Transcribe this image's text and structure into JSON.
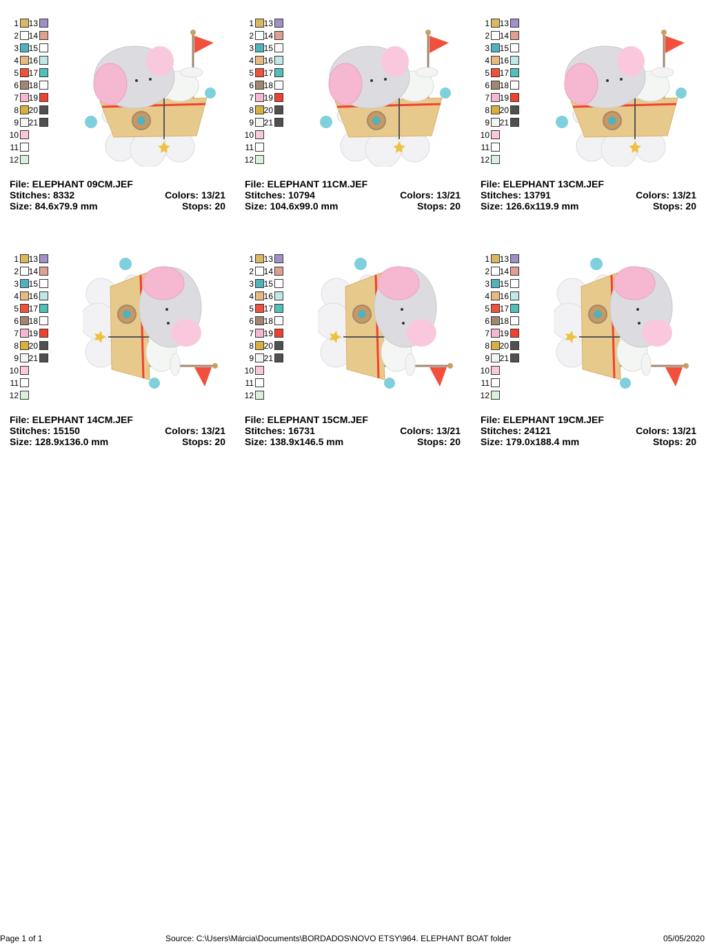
{
  "palette": [
    {
      "number": 1,
      "color": "#d9b860"
    },
    {
      "number": 2,
      "color": "#ffffff"
    },
    {
      "number": 3,
      "color": "#4fb3bf"
    },
    {
      "number": 4,
      "color": "#e6b980"
    },
    {
      "number": 5,
      "color": "#f0503c"
    },
    {
      "number": 6,
      "color": "#a08870"
    },
    {
      "number": 7,
      "color": "#f5b8d0"
    },
    {
      "number": 8,
      "color": "#d8b040"
    },
    {
      "number": 9,
      "color": "#f4f4f4"
    },
    {
      "number": 10,
      "color": "#f9c8dc"
    },
    {
      "number": 11,
      "color": "#ffffff"
    },
    {
      "number": 12,
      "color": "#d8f0dc"
    },
    {
      "number": 13,
      "color": "#a090c8"
    },
    {
      "number": 14,
      "color": "#e0a090"
    },
    {
      "number": 15,
      "color": "#ffffff"
    },
    {
      "number": 16,
      "color": "#c0e8e8"
    },
    {
      "number": 17,
      "color": "#50c0b8"
    },
    {
      "number": 18,
      "color": "#ffffff"
    },
    {
      "number": 19,
      "color": "#f04030"
    },
    {
      "number": 20,
      "color": "#505050"
    },
    {
      "number": 21,
      "color": "#505050"
    }
  ],
  "designs": [
    {
      "file": "File: ELEPHANT 09CM.JEF",
      "stitches": "Stitches: 8332",
      "colors": "Colors: 13/21",
      "size": "Size: 84.6x79.9 mm",
      "stops": "Stops: 20"
    },
    {
      "file": "File: ELEPHANT 11CM.JEF",
      "stitches": "Stitches: 10794",
      "colors": "Colors: 13/21",
      "size": "Size: 104.6x99.0 mm",
      "stops": "Stops: 20"
    },
    {
      "file": "File: ELEPHANT 13CM.JEF",
      "stitches": "Stitches: 13791",
      "colors": "Colors: 13/21",
      "size": "Size: 126.6x119.9 mm",
      "stops": "Stops: 20"
    },
    {
      "file": "File: ELEPHANT 14CM.JEF",
      "stitches": "Stitches: 15150",
      "colors": "Colors: 13/21",
      "size": "Size: 128.9x136.0 mm",
      "stops": "Stops: 20"
    },
    {
      "file": "File: ELEPHANT 15CM.JEF",
      "stitches": "Stitches: 16731",
      "colors": "Colors: 13/21",
      "size": "Size: 138.9x146.5 mm",
      "stops": "Stops: 20"
    },
    {
      "file": "File: ELEPHANT 19CM.JEF",
      "stitches": "Stitches: 24121",
      "colors": "Colors: 13/21",
      "size": "Size: 179.0x188.4 mm",
      "stops": "Stops: 20"
    }
  ],
  "footer": {
    "page": "Page 1 of 1",
    "source": "Source: C:\\Users\\Márcia\\Documents\\BORDADOS\\NOVO ETSY\\964. ELEPHANT BOAT folder",
    "date": "05/05/2020"
  }
}
